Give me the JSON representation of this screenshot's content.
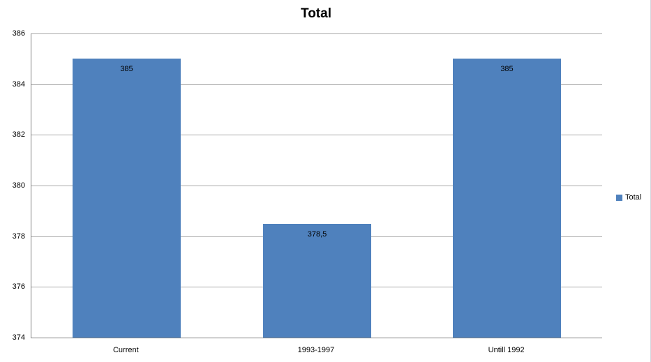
{
  "chart_data": {
    "type": "bar",
    "title": "Total",
    "series_name": "Total",
    "categories": [
      "Current",
      "1993-1997",
      "Untill 1992"
    ],
    "values": [
      385,
      378.5,
      385
    ],
    "value_labels": [
      "385",
      "378,5",
      "385"
    ],
    "xlabel": "",
    "ylabel": "",
    "ylim": [
      374,
      386
    ],
    "ytick_step": 2,
    "y_ticks": [
      386,
      384,
      382,
      380,
      378,
      376,
      374
    ],
    "grid": "horizontal",
    "legend_position": "right",
    "bar_color": "#4F81BD"
  },
  "colors": {
    "bar": "#4F81BD",
    "gridline": "#A9A9A9",
    "axis": "#808080",
    "frame_border": "#D3D7DE",
    "text": "#000000"
  }
}
